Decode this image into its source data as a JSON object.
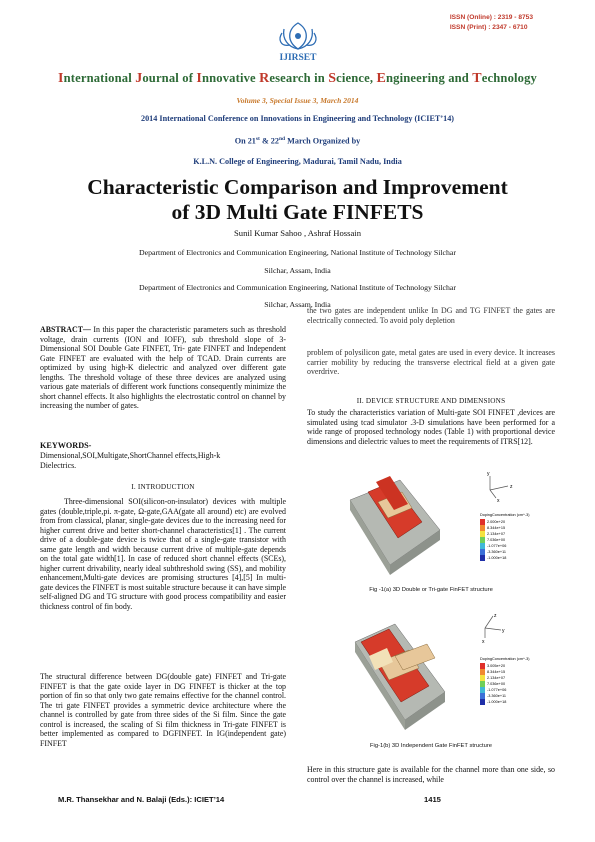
{
  "header": {
    "issn_online": "ISSN (Online)  : 2319 - 8753",
    "issn_print": "ISSN (Print)    :  2347 - 6710",
    "logo_text": "IJIRSET",
    "journal_name": "International Journal of Innovative Research in Science, Engineering and Technology",
    "volume": "Volume 3, Special Issue 3, March 2014",
    "conference": "2014 International Conference on Innovations in Engineering and Technology (ICIET’14)",
    "dates_pre": "On 21",
    "dates_sup1": "st",
    "dates_mid": " & 22",
    "dates_sup2": "nd",
    "dates_post": " March Organized by",
    "college": "K.L.N. College of Engineering, Madurai, Tamil Nadu, India"
  },
  "paper": {
    "title_line1": "Characteristic Comparison and Improvement",
    "title_line2": "of 3D Multi Gate FINFETS",
    "authors": "Sunil Kumar  Sahoo ,  Ashraf Hossain",
    "affiliation1": "Department of Electronics and Communication Engineering, National Institute of Technology Silchar",
    "location1": "Silchar, Assam, India",
    "affiliation2": "Department of Electronics and Communication Engineering, National Institute of Technology Silchar",
    "location2": "Silchar, Assam, India"
  },
  "abstract": {
    "label": "ABSTRACT—",
    "text": " In this paper the characteristic parameters such as threshold voltage, drain currents (ION and IOFF), sub threshold slope of 3-Dimensional SOI Double Gate FINFET, Tri- gate FINFET and Independent Gate FINFET are evaluated with the help of TCAD. Drain currents are optimized by using high-K dielectric and analyzed over different gate lengths. The threshold voltage of these three devices are analyzed using various gate materials of different work functions consequently minimize the short channel effects. It also highlights the electrostatic control on channel by increasing the number of gates."
  },
  "keywords": {
    "label": "KEYWORDS-",
    "text": "Dimensional,SOI,Multigate,ShortChannel effects,High-k Dielectrics."
  },
  "section1": {
    "heading": "I.      INTRODUCTION",
    "p1": "Three-dimensional SOI(silicon-on-insulator) devices with multiple gates (double,triple,pi. π-gate, Ω-gate,GAA(gate all around) etc) are evolved from from classical, planar, single-gate devices due to the increasing need for higher current drive and better short-channel characteristics[1] . The current drive of a double-gate device is twice that of a single-gate transistor with same gate length and width because current drive of multiple-gate depends on the total gate width[1]. In case of reduced short channel effects (SCEs), higher current drivability, nearly ideal subthreshold swing (SS), and mobility enhancement,Multi-gate devices are promising structures [4],[5] In multi-gate devices the FINFET is most suitable structure because it can have simple self-aligned DG and TG structure with good process compatibility and easier thickness control of fin body.",
    "p2": "The structural difference between DG(double gate) FINFET and Tri-gate FINFET is that the gate oxide layer in DG FINFET is thicker at the top portion of fin so that only two gate remains effective for the channel control. The tri gate FINFET provides a symmetric device architecture where the channel is controlled by gate from three sides of the Si film. Since the gate control is increased, the scaling of Si film thickness in Tri-gate FINFET is better implemented as compared to DGFINFET. In IG(independent gate) FINFET"
  },
  "right_column": {
    "p1": "the two gates are independent unlike In DG and TG FINFET the gates are electrically connected. To avoid poly depletion",
    "p2": "problem of polysilicon gate, metal gates are used in every device. It increases carrier mobility by reducing the transverse electrical field at a given gate overdrive.",
    "section2_heading": "II.      DEVICE STRUCTURE AND DIMENSIONS",
    "p3": "To study the characteristics variation of Multi-gate SOI FINFET ,devices are simulated using tcad simulator .3-D simulations have been performed for a wide range of proposed technology nodes (Table 1) with proportional device dimensions and dielectric values to meet the requirements of ITRS[12].",
    "fig1a_caption": "Fig -1(a) 3D Double or Tri-gate FinFET structure",
    "fig1b_caption": "Fig-1(b) 3D Independent Gate FinFET structure",
    "p4": "Here in this structure gate is available for the channel more than one side, so control over the channel is increased, while"
  },
  "figures": {
    "legend_title": "DopingConcentration (cm^-3)",
    "fig1a_legend": [
      "2.000e+20",
      "8.344e+15",
      "2.134e+07",
      "7.036e+00",
      "-1.077e+06",
      "-3.360e+11",
      "-1.000e+18"
    ],
    "fig1b_legend": [
      "3.005e+20",
      "8.344e+15",
      "2.134e+07",
      "7.036e+00",
      "-1.077e+06",
      "-3.360e+11",
      "-1.000e+18"
    ],
    "axis_labels": [
      "z",
      "y",
      "x"
    ]
  },
  "footer": {
    "editors": "M.R. Thansekhar and N. Balaji (Eds.): ICIET’14",
    "page_number": "1415"
  }
}
